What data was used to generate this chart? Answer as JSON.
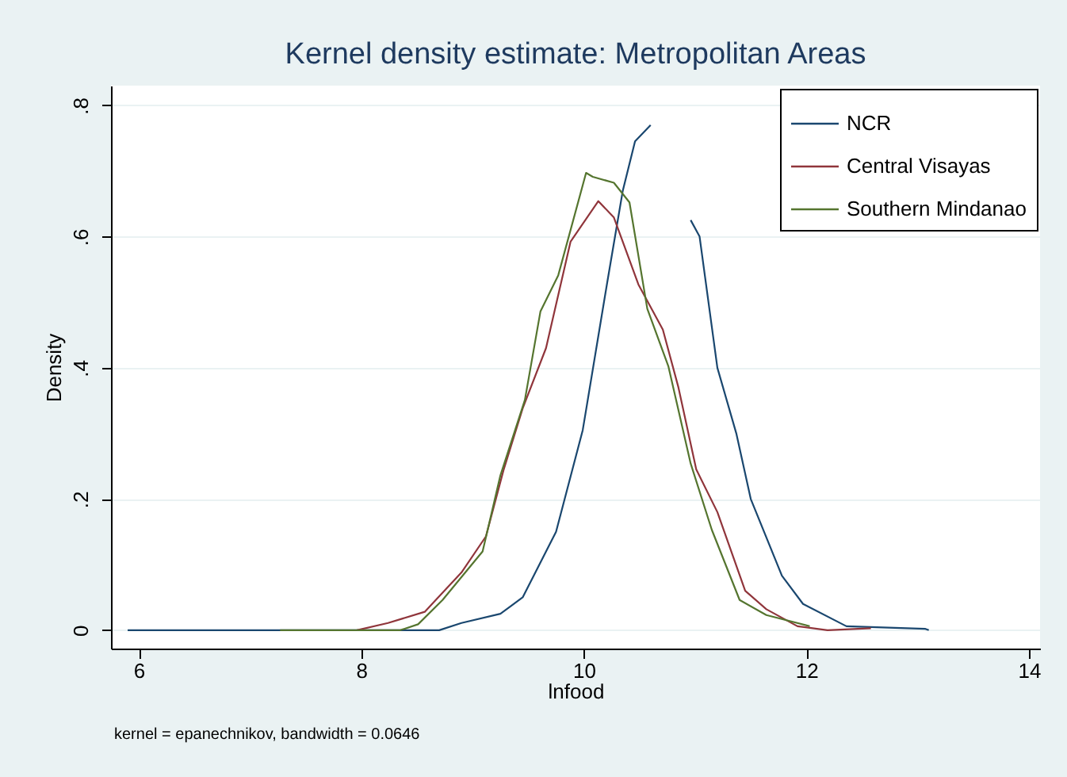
{
  "chart_data": {
    "type": "line",
    "title": "Kernel density estimate: Metropolitan Areas",
    "xlabel": "lnfood",
    "ylabel": "Density",
    "annotations": [
      "kernel = epanechnikov, bandwidth = 0.0646"
    ],
    "xlim": [
      5.75,
      14.1
    ],
    "xticks": [
      6,
      8,
      10,
      12,
      14
    ],
    "ylim": [
      -0.028,
      0.83
    ],
    "yticks": [
      0,
      {
        "value": 0.2,
        "label": ".2"
      },
      {
        "value": 0.4,
        "label": ".4"
      },
      {
        "value": 0.6,
        "label": ".6"
      },
      {
        "value": 0.8,
        "label": ".8"
      }
    ],
    "grid": "y",
    "legend": "top right",
    "marker": "none",
    "line_style": "solid",
    "series": [
      {
        "name": "NCR",
        "color": "#1a476f",
        "x": [
          5.9,
          8.46,
          8.7,
          8.9,
          9.25,
          9.45,
          9.75,
          9.99,
          10.21,
          10.35,
          10.46,
          10.6,
          10.75,
          10.96,
          11.04,
          11.2,
          11.37,
          11.5,
          11.78,
          11.97,
          12.36,
          13.07,
          13.1
        ],
        "values": [
          0,
          0,
          0,
          0.011,
          0.025,
          0.05,
          0.15,
          0.305,
          0.53,
          0.67,
          0.745,
          0.77,
          null,
          0.625,
          0.6,
          0.4,
          0.3,
          0.2,
          0.083,
          0.04,
          0.006,
          0.002,
          0
        ]
      },
      {
        "name": "Central Visayas",
        "color": "#90353b",
        "x": [
          7.96,
          8.24,
          8.57,
          8.9,
          9.12,
          9.28,
          9.45,
          9.66,
          9.88,
          10.13,
          10.27,
          10.49,
          10.71,
          10.85,
          11.01,
          11.2,
          11.45,
          11.64,
          11.92,
          12.19,
          12.58
        ],
        "values": [
          0,
          0.011,
          0.028,
          0.088,
          0.143,
          0.245,
          0.338,
          0.43,
          0.592,
          0.654,
          0.629,
          0.527,
          0.458,
          0.37,
          0.245,
          0.18,
          0.06,
          0.032,
          0.006,
          0,
          0.003
        ]
      },
      {
        "name": "Southern Mindanao",
        "color": "#55752f",
        "x": [
          7.27,
          8.35,
          8.51,
          8.73,
          9.09,
          9.25,
          9.47,
          9.61,
          9.77,
          10.02,
          10.08,
          10.27,
          10.41,
          10.57,
          10.76,
          10.96,
          11.15,
          11.4,
          11.64,
          12.03
        ],
        "values": [
          0,
          0,
          0.009,
          0.046,
          0.12,
          0.236,
          0.351,
          0.486,
          0.541,
          0.697,
          0.691,
          0.682,
          0.652,
          0.49,
          0.402,
          0.254,
          0.153,
          0.046,
          0.023,
          0.006
        ]
      }
    ]
  }
}
